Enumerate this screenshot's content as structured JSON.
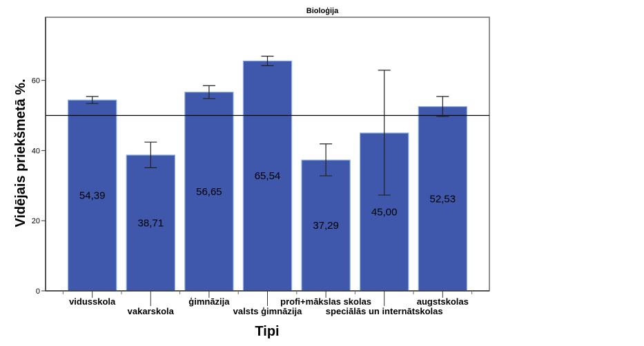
{
  "chart_data": {
    "type": "bar",
    "title": "Bioloģija",
    "xlabel": "Tipi",
    "ylabel": "Vidējais priekšmetā %.",
    "ylim": [
      0,
      78
    ],
    "yticks": [
      0,
      20,
      40,
      60
    ],
    "ytick_labels": [
      "0",
      "20",
      "40",
      "60"
    ],
    "grid": false,
    "reference_line": 50,
    "categories": [
      "vidusskola",
      "vakarskola",
      "ģimnāzija",
      "valsts ģimnāzija",
      "profi+mākslas skolas",
      "speciālās un internātskolas",
      "augstskolas"
    ],
    "values": [
      54.39,
      38.71,
      56.65,
      65.54,
      37.29,
      45.0,
      52.53
    ],
    "value_labels": [
      "54,39",
      "38,71",
      "56,65",
      "65,54",
      "37,29",
      "45,00",
      "52,53"
    ],
    "error_bars": [
      {
        "low": 53.4,
        "high": 55.4
      },
      {
        "low": 35.1,
        "high": 42.4
      },
      {
        "low": 54.8,
        "high": 58.5
      },
      {
        "low": 64.2,
        "high": 66.9
      },
      {
        "low": 32.8,
        "high": 41.9
      },
      {
        "low": 27.3,
        "high": 62.9
      },
      {
        "low": 49.7,
        "high": 55.4
      }
    ],
    "colors": {
      "bar": "#3f58ab",
      "bar_edge": "#8fb4e3",
      "reference": "#000000"
    }
  }
}
